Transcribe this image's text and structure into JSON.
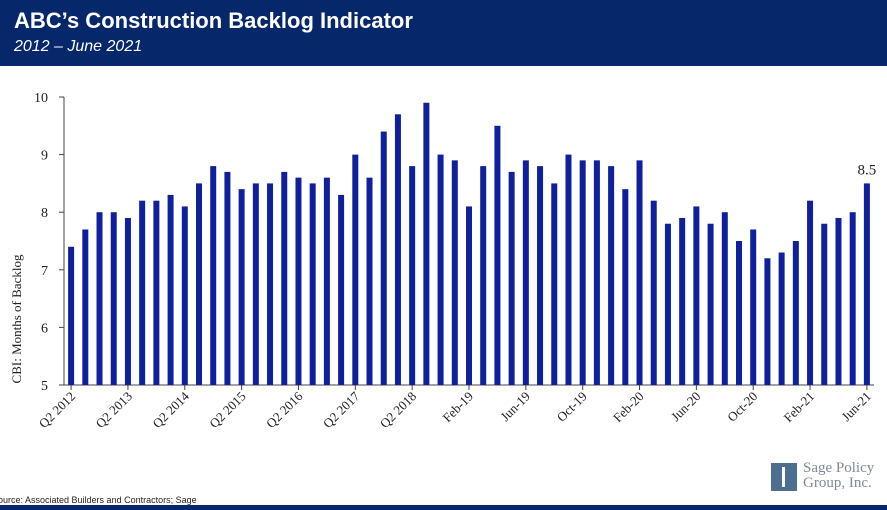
{
  "header": {
    "title": "ABC’s Construction Backlog Indicator",
    "subtitle": "2012 – June 2021"
  },
  "footer": {
    "source": "ource: Associated Builders and Contractors; Sage",
    "logo_line1": "Sage Policy",
    "logo_line2": "Group, Inc."
  },
  "colors": {
    "bar": "#10209c",
    "header": "#06286a"
  },
  "chart_data": {
    "type": "bar",
    "title": "ABC’s Construction Backlog Indicator",
    "subtitle": "2012 – June 2021",
    "xlabel": "",
    "ylabel": "CBI: Months of Backlog",
    "ylim": [
      5,
      10
    ],
    "yticks": [
      5,
      6,
      7,
      8,
      9,
      10
    ],
    "grid": false,
    "x_tick_labels": [
      {
        "index": 0,
        "label": "Q2 2012"
      },
      {
        "index": 4,
        "label": "Q2 2013"
      },
      {
        "index": 8,
        "label": "Q2 2014"
      },
      {
        "index": 12,
        "label": "Q2 2015"
      },
      {
        "index": 16,
        "label": "Q2 2016"
      },
      {
        "index": 20,
        "label": "Q2 2017"
      },
      {
        "index": 24,
        "label": "Q2 2018"
      },
      {
        "index": 28,
        "label": "Feb-19"
      },
      {
        "index": 32,
        "label": "Jun-19"
      },
      {
        "index": 36,
        "label": "Oct-19"
      },
      {
        "index": 40,
        "label": "Feb-20"
      },
      {
        "index": 44,
        "label": "Jun-20"
      },
      {
        "index": 48,
        "label": "Oct-20"
      },
      {
        "index": 52,
        "label": "Feb-21"
      },
      {
        "index": 56,
        "label": "Jun-21"
      }
    ],
    "values": [
      7.4,
      7.7,
      8.0,
      8.0,
      7.9,
      8.2,
      8.2,
      8.3,
      8.1,
      8.5,
      8.8,
      8.7,
      8.4,
      8.5,
      8.5,
      8.7,
      8.6,
      8.5,
      8.6,
      8.3,
      9.0,
      8.6,
      9.4,
      9.7,
      8.8,
      9.9,
      9.0,
      8.9,
      8.1,
      8.8,
      9.5,
      8.7,
      8.9,
      8.8,
      8.5,
      9.0,
      8.9,
      8.9,
      8.8,
      8.4,
      8.9,
      8.2,
      7.8,
      7.9,
      8.1,
      7.8,
      8.0,
      7.5,
      7.7,
      7.2,
      7.3,
      7.5,
      8.2,
      7.8,
      7.9,
      8.0,
      8.5
    ],
    "annotations": [
      {
        "index": 56,
        "label": "8.5"
      }
    ]
  }
}
